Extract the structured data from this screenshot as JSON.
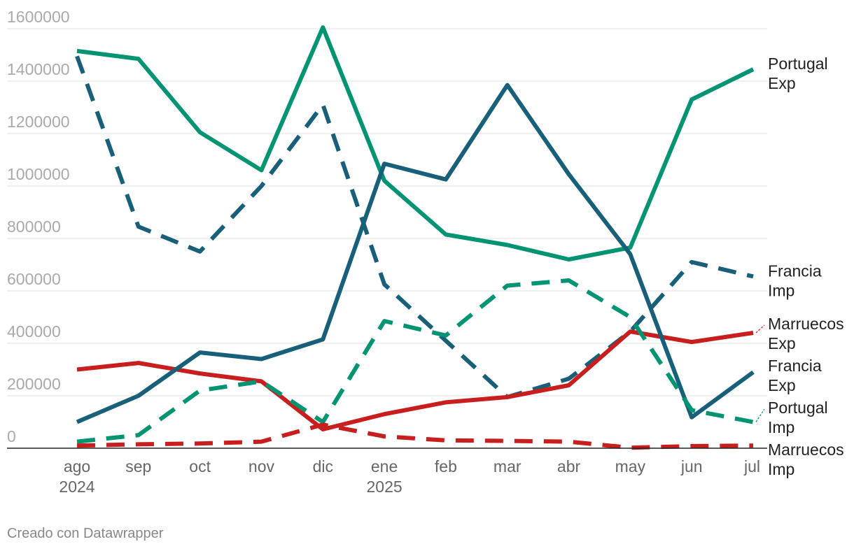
{
  "chart_data": {
    "type": "line",
    "categories": [
      "ago",
      "sep",
      "oct",
      "nov",
      "dic",
      "ene",
      "feb",
      "mar",
      "abr",
      "may",
      "jun",
      "jul"
    ],
    "year_labels": {
      "ago": "2024",
      "ene": "2025"
    },
    "ylim": [
      0,
      1600000
    ],
    "yticks": [
      0,
      200000,
      400000,
      600000,
      800000,
      1000000,
      1200000,
      1400000,
      1600000
    ],
    "grid": true,
    "series": [
      {
        "name": "Portugal Exp",
        "label_lines": [
          "Portugal",
          "Exp"
        ],
        "color": "#009473",
        "dash": false,
        "values": [
          1515000,
          1485000,
          1205000,
          1060000,
          1605000,
          1020000,
          815000,
          775000,
          720000,
          765000,
          1330000,
          1445000
        ]
      },
      {
        "name": "Francia Imp",
        "label_lines": [
          "Francia",
          "Imp"
        ],
        "color": "#18607a",
        "dash": true,
        "values": [
          1495000,
          845000,
          750000,
          1000000,
          1310000,
          625000,
          410000,
          195000,
          265000,
          445000,
          710000,
          655000
        ]
      },
      {
        "name": "Marruecos Exp",
        "label_lines": [
          "Marruecos",
          "Exp"
        ],
        "color": "#c81e1e",
        "dash": false,
        "values": [
          300000,
          325000,
          285000,
          255000,
          72000,
          130000,
          175000,
          195000,
          240000,
          445000,
          405000,
          440000
        ]
      },
      {
        "name": "Francia Exp",
        "label_lines": [
          "Francia",
          "Exp"
        ],
        "color": "#18607a",
        "dash": false,
        "values": [
          100000,
          200000,
          365000,
          340000,
          415000,
          1085000,
          1025000,
          1385000,
          1045000,
          740000,
          118000,
          290000
        ]
      },
      {
        "name": "Portugal Imp",
        "label_lines": [
          "Portugal",
          "Imp"
        ],
        "color": "#009473",
        "dash": true,
        "values": [
          25000,
          50000,
          220000,
          255000,
          100000,
          485000,
          430000,
          620000,
          640000,
          500000,
          145000,
          100000
        ]
      },
      {
        "name": "Marruecos Imp",
        "label_lines": [
          "Marruecos",
          "Imp"
        ],
        "color": "#c81e1e",
        "dash": true,
        "values": [
          10000,
          15000,
          18000,
          25000,
          90000,
          45000,
          30000,
          28000,
          25000,
          2000,
          8000,
          10000
        ]
      }
    ]
  },
  "footer": {
    "credit": "Creado con Datawrapper"
  }
}
